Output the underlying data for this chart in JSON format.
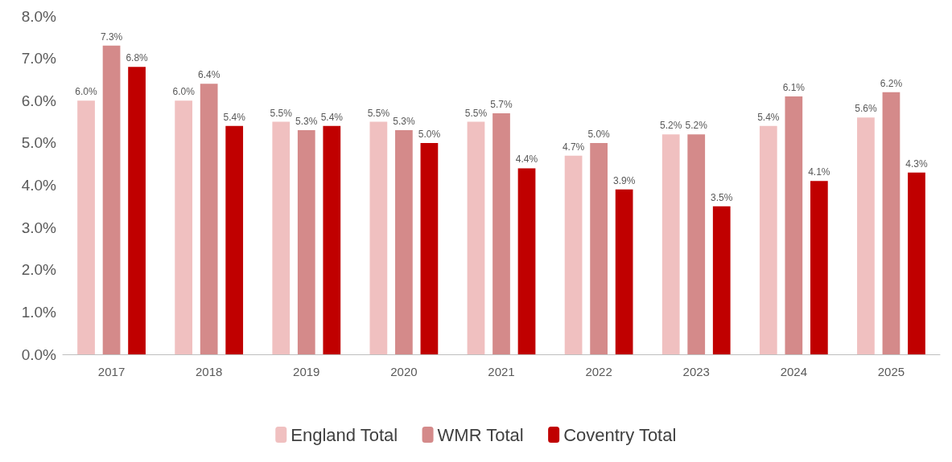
{
  "chart_data": {
    "type": "bar",
    "categories": [
      "2017",
      "2018",
      "2019",
      "2020",
      "2021",
      "2022",
      "2023",
      "2024",
      "2025"
    ],
    "series": [
      {
        "name": "England Total",
        "color": "#f0c0c0",
        "values": [
          6.0,
          6.0,
          5.5,
          5.5,
          5.5,
          4.7,
          5.2,
          5.4,
          5.6
        ],
        "value_labels": [
          "6.0%",
          "6.0%",
          "5.5%",
          "5.5%",
          "5.5%",
          "4.7%",
          "5.2%",
          "5.4%",
          "5.6%"
        ]
      },
      {
        "name": "WMR Total",
        "color": "#d48a8a",
        "values": [
          7.3,
          6.4,
          5.3,
          5.3,
          5.7,
          5.0,
          5.2,
          6.1,
          6.2
        ],
        "value_labels": [
          "7.3%",
          "6.4%",
          "5.3%",
          "5.3%",
          "5.7%",
          "5.0%",
          "5.2%",
          "6.1%",
          "6.2%"
        ]
      },
      {
        "name": "Coventry Total",
        "color": "#c00000",
        "values": [
          6.8,
          5.4,
          5.4,
          5.0,
          4.4,
          3.9,
          3.5,
          4.1,
          4.3
        ],
        "value_labels": [
          "6.8%",
          "5.4%",
          "5.4%",
          "5.0%",
          "4.4%",
          "3.9%",
          "3.5%",
          "4.1%",
          "4.3%"
        ]
      }
    ],
    "ylim": [
      0,
      8
    ],
    "yticks": [
      {
        "value": 0,
        "label": "0.0%"
      },
      {
        "value": 1,
        "label": "1.0%"
      },
      {
        "value": 2,
        "label": "2.0%"
      },
      {
        "value": 3,
        "label": "3.0%"
      },
      {
        "value": 4,
        "label": "4.0%"
      },
      {
        "value": 5,
        "label": "5.0%"
      },
      {
        "value": 6,
        "label": "6.0%"
      },
      {
        "value": 7,
        "label": "7.0%"
      },
      {
        "value": 8,
        "label": "8.0%"
      }
    ],
    "grid": false,
    "legend": "bottom"
  }
}
